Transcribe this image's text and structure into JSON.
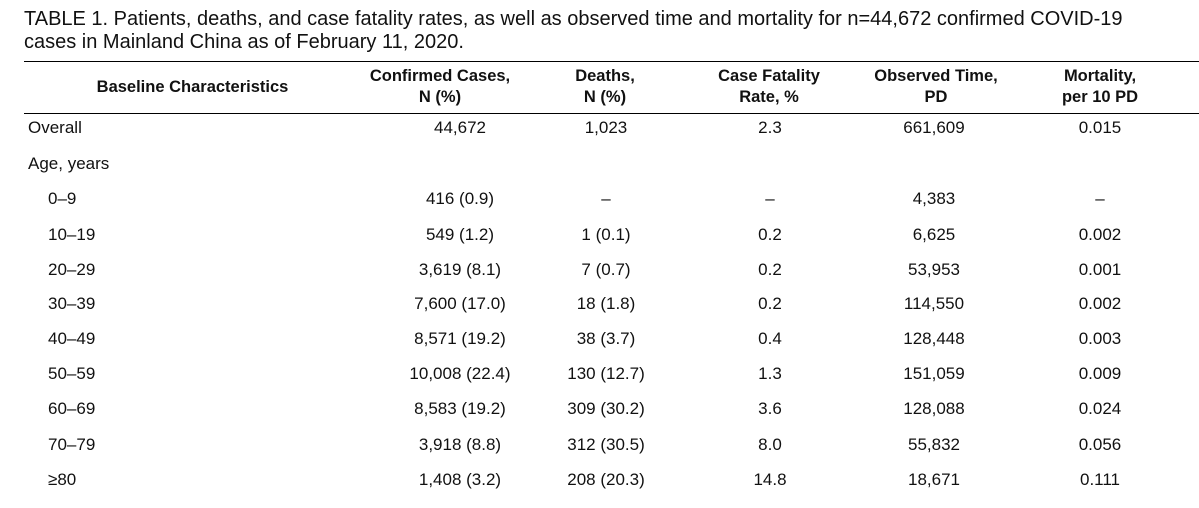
{
  "caption": {
    "line1": "TABLE 1. Patients, deaths, and case fatality rates, as well as observed time and mortality for n=44,672 confirmed COVID-19",
    "line2": "cases in Mainland China as of February 11, 2020."
  },
  "headers": [
    {
      "line1": "Baseline Characteristics",
      "line2": ""
    },
    {
      "line1": "Confirmed Cases,",
      "line2": "N (%)"
    },
    {
      "line1": "Deaths,",
      "line2": "N (%)"
    },
    {
      "line1": "Case Fatality",
      "line2": "Rate, %"
    },
    {
      "line1": "Observed Time,",
      "line2": "PD"
    },
    {
      "line1": "Mortality,",
      "line2": "per 10 PD"
    }
  ],
  "overall": {
    "label": "Overall",
    "cases": "44,672",
    "deaths": "1,023",
    "cfr": "2.3",
    "time": "661,609",
    "mortality": "0.015"
  },
  "age_section": {
    "label": "Age, years"
  },
  "age_rows": [
    {
      "label": "0–9",
      "cases": "416 (0.9)",
      "deaths": "–",
      "cfr": "–",
      "time": "4,383",
      "mortality": "–"
    },
    {
      "label": "10–19",
      "cases": "549 (1.2)",
      "deaths": "1 (0.1)",
      "cfr": "0.2",
      "time": "6,625",
      "mortality": "0.002"
    },
    {
      "label": "20–29",
      "cases": "3,619 (8.1)",
      "deaths": "7 (0.7)",
      "cfr": "0.2",
      "time": "53,953",
      "mortality": "0.001"
    },
    {
      "label": "30–39",
      "cases": "7,600 (17.0)",
      "deaths": "18 (1.8)",
      "cfr": "0.2",
      "time": "114,550",
      "mortality": "0.002"
    },
    {
      "label": "40–49",
      "cases": "8,571 (19.2)",
      "deaths": "38 (3.7)",
      "cfr": "0.4",
      "time": "128,448",
      "mortality": "0.003"
    },
    {
      "label": "50–59",
      "cases": "10,008 (22.4)",
      "deaths": "130 (12.7)",
      "cfr": "1.3",
      "time": "151,059",
      "mortality": "0.009"
    },
    {
      "label": "60–69",
      "cases": "8,583 (19.2)",
      "deaths": "309 (30.2)",
      "cfr": "3.6",
      "time": "128,088",
      "mortality": "0.024"
    },
    {
      "label": "70–79",
      "cases": "3,918 (8.8)",
      "deaths": "312 (30.5)",
      "cfr": "8.0",
      "time": "55,832",
      "mortality": "0.056"
    },
    {
      "label": "≥80",
      "cases": "1,408 (3.2)",
      "deaths": "208 (20.3)",
      "cfr": "14.8",
      "time": "18,671",
      "mortality": "0.111"
    }
  ]
}
